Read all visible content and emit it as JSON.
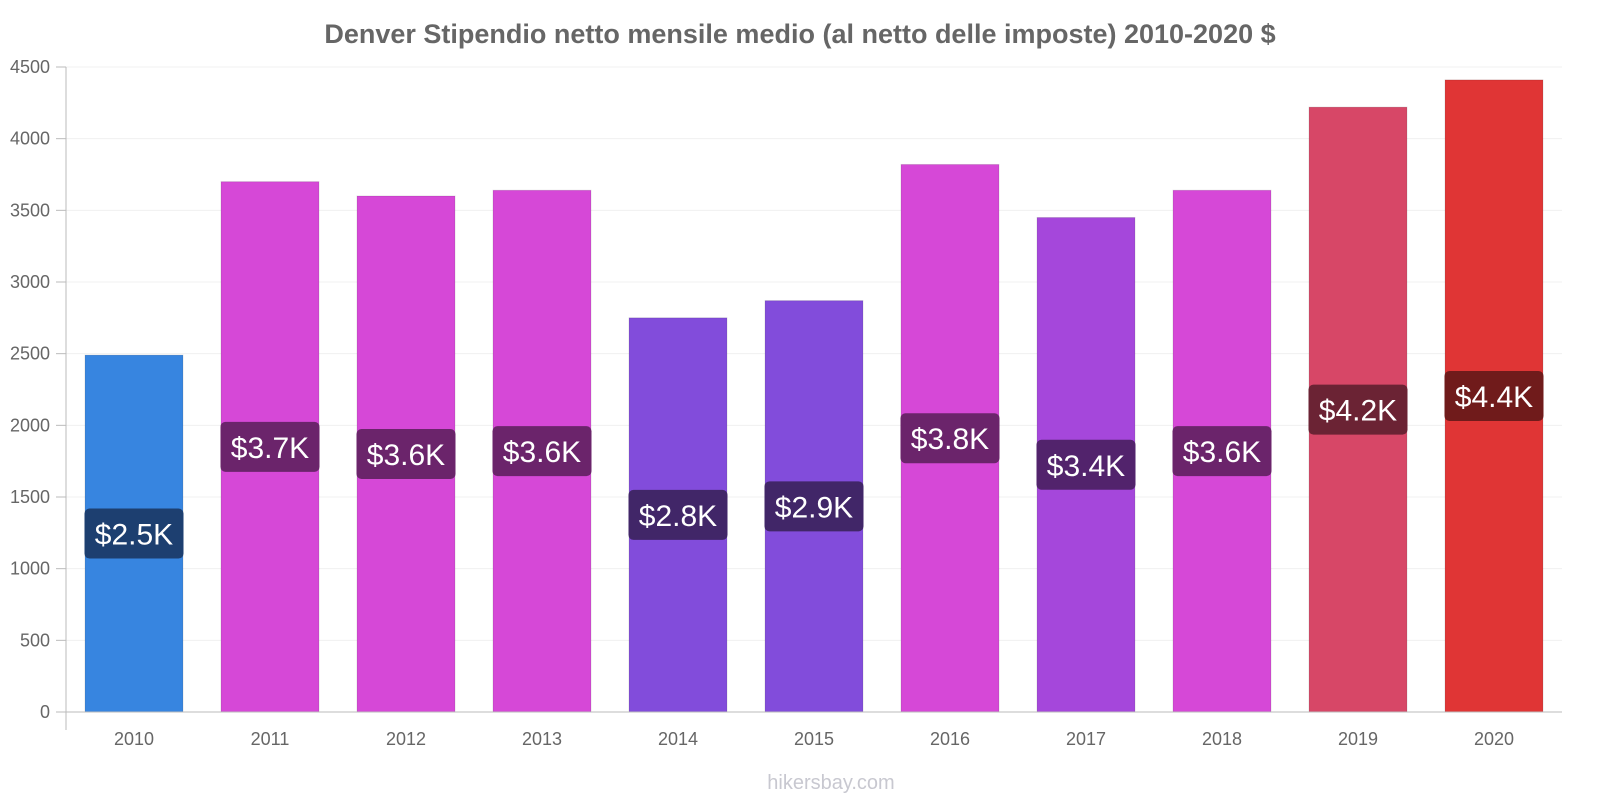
{
  "chart_data": {
    "type": "bar",
    "title": "Denver Stipendio netto mensile medio (al netto delle imposte) 2010-2020 $",
    "xlabel": "",
    "ylabel": "",
    "ylim": [
      0,
      4500
    ],
    "yticks": [
      0,
      500,
      1000,
      1500,
      2000,
      2500,
      3000,
      3500,
      4000,
      4500
    ],
    "grid": true,
    "legend": "none",
    "categories": [
      "2010",
      "2011",
      "2012",
      "2013",
      "2014",
      "2015",
      "2016",
      "2017",
      "2018",
      "2019",
      "2020"
    ],
    "values": [
      2490,
      3700,
      3600,
      3640,
      2750,
      2870,
      3820,
      3450,
      3640,
      4220,
      4410
    ],
    "data_labels": [
      "$2.5K",
      "$3.7K",
      "$3.6K",
      "$3.6K",
      "$2.8K",
      "$2.9K",
      "$3.8K",
      "$3.4K",
      "$3.6K",
      "$4.2K",
      "$4.4K"
    ],
    "bar_colors": [
      "#3785e0",
      "#d648d7",
      "#d648d7",
      "#d648d7",
      "#824cdb",
      "#824cdb",
      "#d648d7",
      "#a547db",
      "#d648d7",
      "#d74767",
      "#e03535"
    ],
    "label_colors": [
      "#1d3f70",
      "#6b246b",
      "#6b246b",
      "#6b246b",
      "#412668",
      "#412668",
      "#6b246b",
      "#52236c",
      "#6b246b",
      "#6b2334",
      "#701b1b"
    ]
  },
  "watermark": "hikersbay.com",
  "colors": {
    "axis": "#bbbbbb",
    "grid": "#f0f0f0",
    "text": "#666666"
  }
}
